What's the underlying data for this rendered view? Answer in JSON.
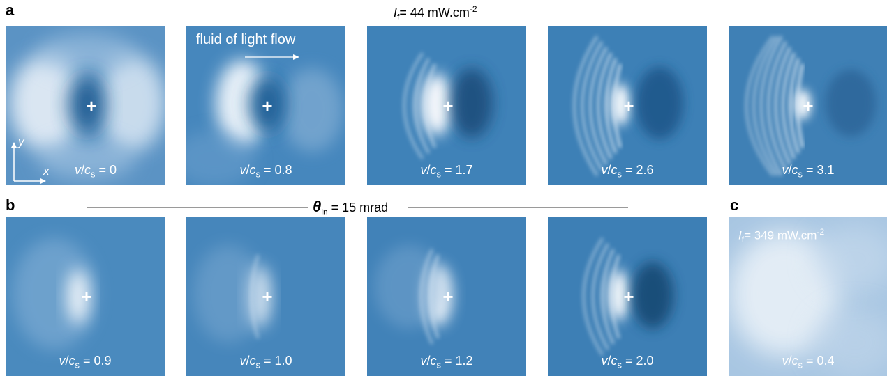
{
  "panels": {
    "a": {
      "letter": "a",
      "header": {
        "symbol": "I",
        "sub": "f",
        "text": "= 44 mW.cm",
        "sup": "-2"
      },
      "flow_label": "fluid of light flow",
      "axis_x": "x",
      "axis_y": "y",
      "tiles": [
        {
          "ratio": "= 0"
        },
        {
          "ratio": "= 0.8"
        },
        {
          "ratio": "= 1.7"
        },
        {
          "ratio": "= 2.6"
        },
        {
          "ratio": "= 3.1"
        }
      ]
    },
    "b": {
      "letter": "b",
      "header": {
        "symbol": "θ",
        "sub": "in",
        "text": "= 15 mrad"
      },
      "tiles": [
        {
          "ratio": "= 0.9"
        },
        {
          "ratio": "= 1.0"
        },
        {
          "ratio": "= 1.2"
        },
        {
          "ratio": "= 2.0"
        }
      ]
    },
    "c": {
      "letter": "c",
      "intensity": {
        "symbol": "I",
        "sub": "f",
        "text": "= 349 mW.cm",
        "sup": "-2"
      },
      "tiles": [
        {
          "ratio": "= 0.4"
        }
      ]
    }
  },
  "caption_parts": {
    "v": "v",
    "slash": "/",
    "c": "c",
    "s": "s"
  },
  "marker": "+",
  "colors": {
    "field": "#3c7fb3",
    "dark": "#123f66",
    "bright": "#f4f7fb"
  }
}
